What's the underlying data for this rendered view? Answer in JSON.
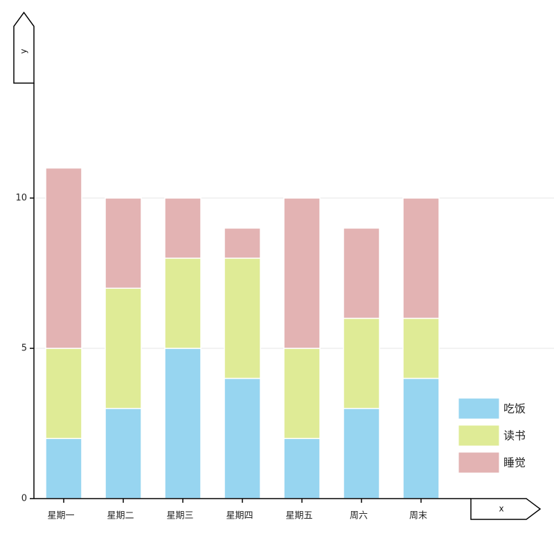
{
  "chart_data": {
    "type": "bar",
    "stacked": true,
    "categories": [
      "星期一",
      "星期二",
      "星期三",
      "星期四",
      "星期五",
      "周六",
      "周末"
    ],
    "series": [
      {
        "name": "吃饭",
        "color": "#97d5f0",
        "values": [
          2,
          3,
          5,
          4,
          2,
          3,
          4
        ]
      },
      {
        "name": "读书",
        "color": "#dfeb96",
        "values": [
          3,
          4,
          3,
          4,
          3,
          3,
          2
        ]
      },
      {
        "name": "睡觉",
        "color": "#e3b3b3",
        "values": [
          6,
          3,
          2,
          1,
          5,
          3,
          4
        ]
      }
    ],
    "xlabel": "x",
    "ylabel": "y",
    "ylim": [
      0,
      15.5
    ],
    "yticks": [
      "0",
      "5",
      "10"
    ],
    "grid": true,
    "legend": "bottom-right"
  }
}
